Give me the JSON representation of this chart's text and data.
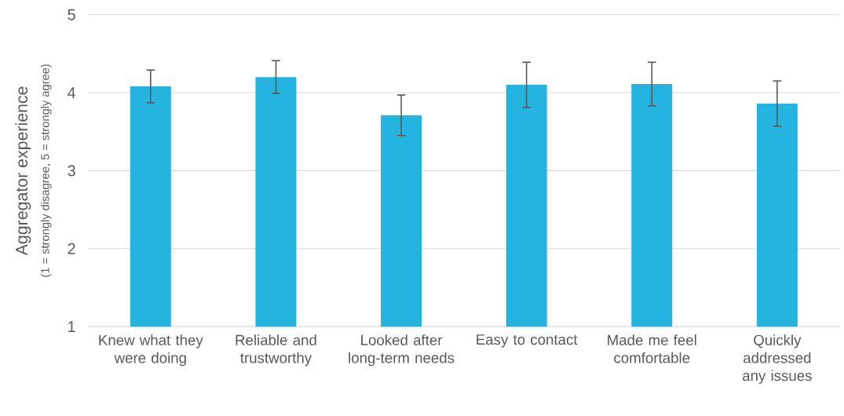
{
  "chart_data": {
    "type": "bar",
    "ylabel": "Aggregator experience",
    "annotations": [
      "(1 = strongly disagree, 5 = strongly agree)"
    ],
    "categories": [
      "Knew what they were doing",
      "Reliable and trustworthy",
      "Looked after long-term needs",
      "Easy to contact",
      "Made me feel comfortable",
      "Quickly addressed any issues"
    ],
    "values": [
      4.08,
      4.2,
      3.71,
      4.1,
      4.11,
      3.86
    ],
    "errors": [
      0.21,
      0.21,
      0.26,
      0.29,
      0.28,
      0.29
    ],
    "color": "#25b3df",
    "ylim": [
      1,
      5
    ],
    "yticks": [
      1,
      2,
      3,
      4,
      5
    ],
    "grid": "y"
  }
}
